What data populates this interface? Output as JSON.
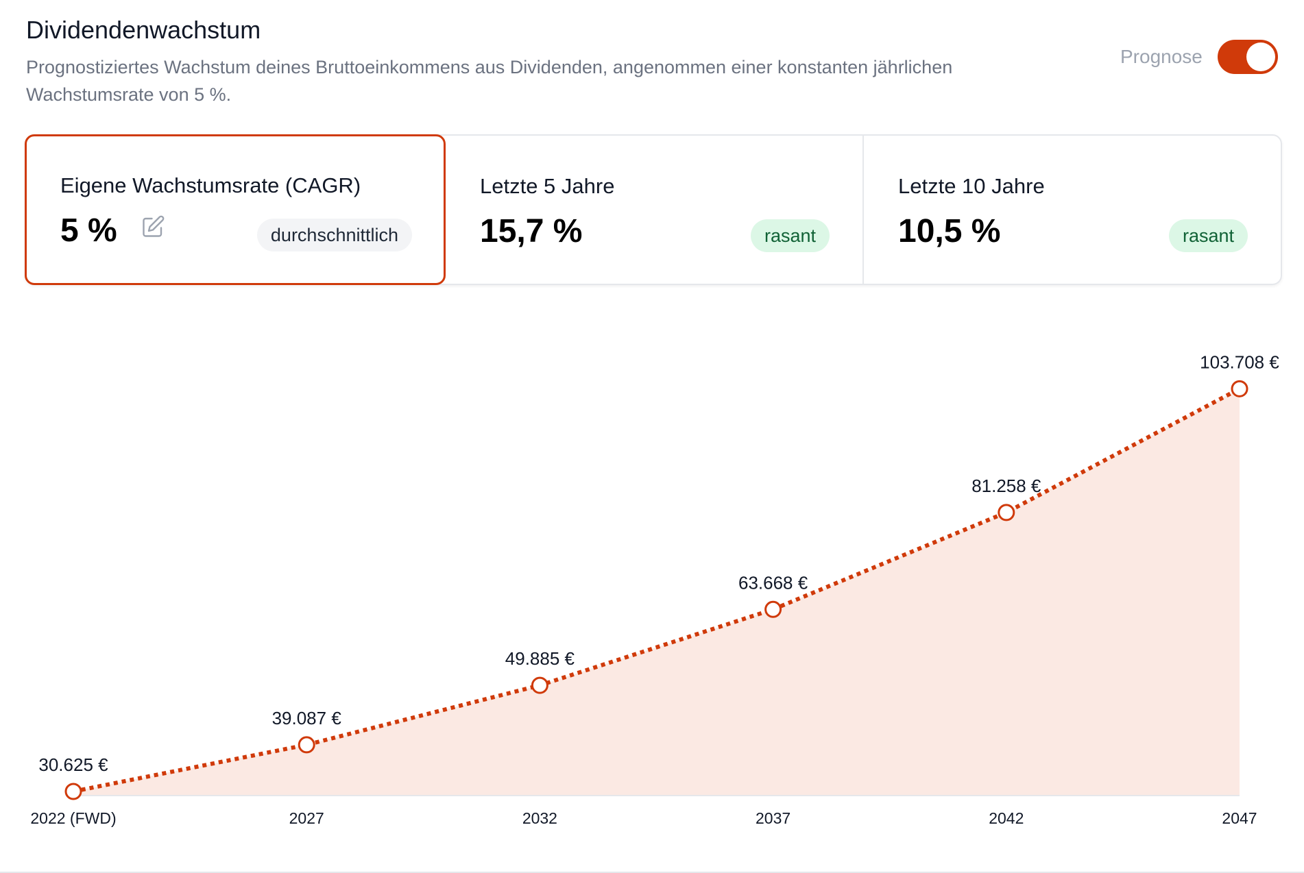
{
  "header": {
    "title": "Dividendenwachstum",
    "subtitle": "Prognostiziertes Wachstum deines Bruttoeinkommens aus Dividenden, angenommen einer konstanten jährlichen Wachstumsrate von 5 %.",
    "prognose_label": "Prognose",
    "prognose_enabled": true
  },
  "cards": [
    {
      "label": "Eigene Wachstumsrate (CAGR)",
      "value": "5 %",
      "badge": "durchschnittlich",
      "selected": true
    },
    {
      "label": "Letzte 5 Jahre",
      "value": "15,7 %",
      "badge": "rasant",
      "selected": false
    },
    {
      "label": "Letzte 10 Jahre",
      "value": "10,5 %",
      "badge": "rasant",
      "selected": false
    }
  ],
  "colors": {
    "accent": "#d03a0a",
    "area_fill": "#fbe9e3",
    "good_bg": "#dcf7e6",
    "good_text": "#116236"
  },
  "chart_data": {
    "type": "area",
    "categories": [
      "2022 (FWD)",
      "2027",
      "2032",
      "2037",
      "2042",
      "2047"
    ],
    "values": [
      30625,
      39087,
      49885,
      63668,
      81258,
      103708
    ],
    "data_labels": [
      "30.625 €",
      "39.087 €",
      "49.885 €",
      "63.668 €",
      "81.258 €",
      "103.708 €"
    ],
    "ylim": [
      30000,
      104000
    ],
    "grid": false,
    "line_style": "dotted"
  }
}
